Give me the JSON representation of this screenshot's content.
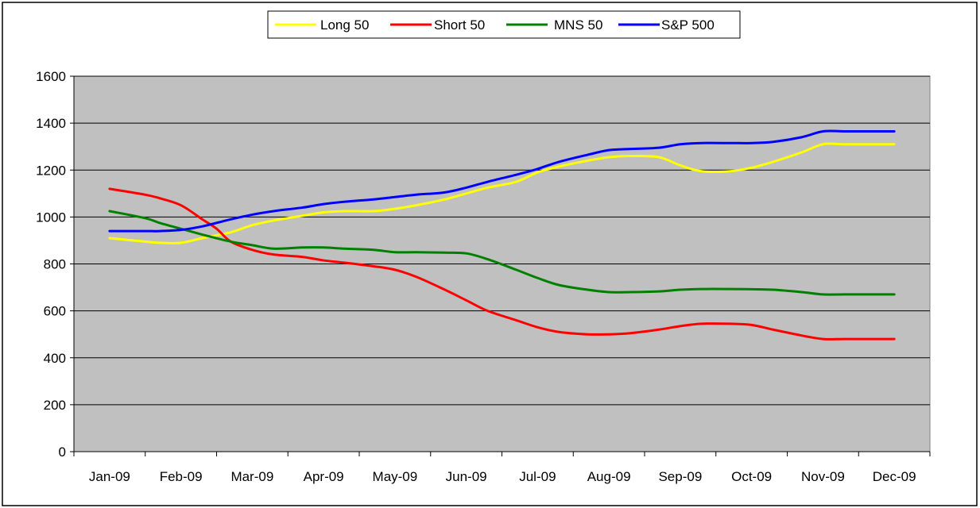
{
  "chart_data": {
    "type": "line",
    "title": "",
    "xlabel": "",
    "ylabel": "",
    "ylim": [
      0,
      1600
    ],
    "yticks": [
      0,
      200,
      400,
      600,
      800,
      1000,
      1200,
      1400,
      1600
    ],
    "categories": [
      "Jan-09",
      "Feb-09",
      "Mar-09",
      "Apr-09",
      "May-09",
      "Jun-09",
      "Jul-09",
      "Aug-09",
      "Sep-09",
      "Oct-09",
      "Nov-09",
      "Dec-09"
    ],
    "grid": "horizontal",
    "legend_position": "top-center",
    "plot_background": "#c0c0c0",
    "series": [
      {
        "name": "Long 50",
        "color": "#ffff00",
        "x": [
          0,
          0.5,
          0.7,
          1,
          1.3,
          1.7,
          2,
          2.3,
          2.7,
          3,
          3.3,
          3.7,
          4,
          4.3,
          4.7,
          5,
          5.3,
          5.7,
          6,
          6.3,
          6.7,
          7,
          7.3,
          7.7,
          8,
          8.3,
          8.7,
          9,
          9.3,
          9.7,
          10,
          10.3,
          10.7,
          11
        ],
        "values": [
          910,
          895,
          890,
          890,
          910,
          935,
          965,
          985,
          1005,
          1020,
          1025,
          1025,
          1035,
          1050,
          1075,
          1100,
          1125,
          1150,
          1190,
          1215,
          1240,
          1255,
          1260,
          1255,
          1220,
          1195,
          1195,
          1210,
          1235,
          1275,
          1310,
          1310,
          1310,
          1310
        ]
      },
      {
        "name": "Short 50",
        "color": "#ff0000",
        "x": [
          0,
          0.5,
          0.7,
          1,
          1.3,
          1.5,
          1.7,
          2,
          2.3,
          2.7,
          3,
          3.3,
          3.7,
          4,
          4.3,
          4.7,
          5,
          5.3,
          5.7,
          6,
          6.3,
          6.7,
          7,
          7.3,
          7.7,
          8,
          8.3,
          8.7,
          9,
          9.3,
          9.7,
          10,
          10.3,
          10.7,
          11
        ],
        "values": [
          1120,
          1095,
          1080,
          1050,
          990,
          950,
          895,
          860,
          840,
          830,
          815,
          805,
          790,
          775,
          745,
          690,
          645,
          600,
          560,
          530,
          510,
          500,
          500,
          505,
          520,
          535,
          545,
          545,
          540,
          520,
          495,
          480,
          480,
          480,
          480
        ]
      },
      {
        "name": "MNS 50",
        "color": "#008000",
        "x": [
          0,
          0.5,
          0.7,
          1,
          1.3,
          1.7,
          2,
          2.3,
          2.7,
          3,
          3.3,
          3.7,
          4,
          4.3,
          4.7,
          5,
          5.3,
          5.7,
          6,
          6.3,
          6.7,
          7,
          7.3,
          7.7,
          8,
          8.3,
          8.7,
          9,
          9.3,
          9.7,
          10,
          10.3,
          10.7,
          11
        ],
        "values": [
          1025,
          995,
          975,
          950,
          925,
          895,
          880,
          865,
          870,
          870,
          865,
          860,
          850,
          850,
          848,
          845,
          820,
          775,
          740,
          710,
          690,
          680,
          680,
          683,
          690,
          693,
          693,
          692,
          690,
          680,
          670,
          670,
          670,
          670
        ]
      },
      {
        "name": "S&P 500",
        "color": "#0000ff",
        "x": [
          0,
          0.5,
          0.7,
          1,
          1.3,
          1.7,
          2,
          2.3,
          2.7,
          3,
          3.3,
          3.7,
          4,
          4.3,
          4.7,
          5,
          5.3,
          5.7,
          6,
          6.3,
          6.7,
          7,
          7.3,
          7.7,
          8,
          8.3,
          8.7,
          9,
          9.3,
          9.7,
          10,
          10.3,
          10.7,
          11
        ],
        "values": [
          940,
          940,
          940,
          945,
          960,
          990,
          1010,
          1025,
          1040,
          1055,
          1065,
          1075,
          1085,
          1095,
          1105,
          1125,
          1150,
          1180,
          1205,
          1235,
          1265,
          1285,
          1290,
          1295,
          1310,
          1315,
          1315,
          1315,
          1320,
          1340,
          1365,
          1365,
          1365,
          1365
        ]
      }
    ]
  }
}
